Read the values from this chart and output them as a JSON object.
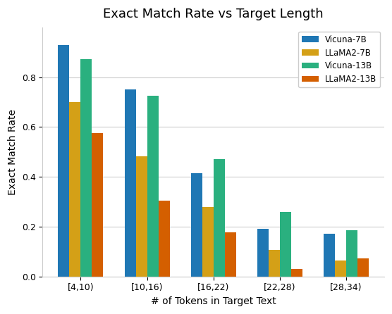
{
  "title": "Exact Match Rate vs Target Length",
  "xlabel": "# of Tokens in Target Text",
  "ylabel": "Exact Match Rate",
  "categories": [
    "[4,10)",
    "[10,16)",
    "[16,22)",
    "[22,28)",
    "[28,34)"
  ],
  "series": {
    "Vicuna-7B": [
      0.93,
      0.75,
      0.415,
      0.19,
      0.172
    ],
    "LLaMA2-7B": [
      0.7,
      0.483,
      0.278,
      0.105,
      0.063
    ],
    "Vicuna-13B": [
      0.873,
      0.727,
      0.472,
      0.26,
      0.185
    ],
    "LLaMA2-13B": [
      0.575,
      0.305,
      0.178,
      0.03,
      0.072
    ]
  },
  "colors": {
    "Vicuna-7B": "#1f77b4",
    "LLaMA2-7B": "#d4a017",
    "Vicuna-13B": "#2ab07f",
    "LLaMA2-13B": "#d45f00"
  },
  "ylim": [
    0.0,
    1.0
  ],
  "bar_width": 0.17,
  "legend_loc": "upper right",
  "grid": true,
  "background_color": "#ffffff",
  "title_fontsize": 13,
  "label_fontsize": 10,
  "tick_fontsize": 9
}
